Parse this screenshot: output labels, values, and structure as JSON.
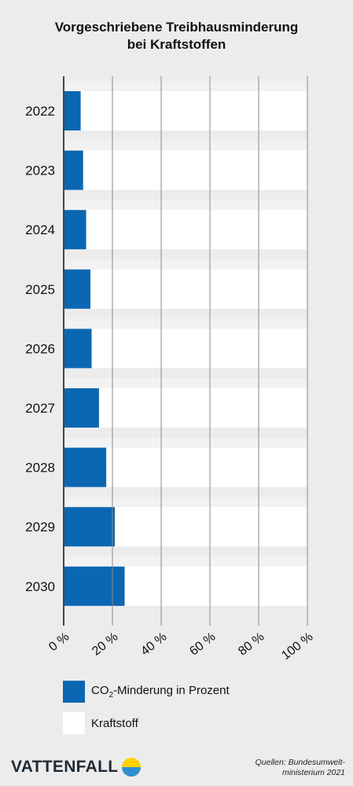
{
  "title_line1": "Vorgeschriebene Treibhausminderung",
  "title_line2": "bei Kraftstoffen",
  "colors": {
    "co2": "#0b67b2",
    "fuel": "#ffffff",
    "band": "#ececec",
    "grid": "#8a8a8a"
  },
  "chart_data": {
    "type": "bar",
    "orientation": "horizontal",
    "stacked": true,
    "categories": [
      "2022",
      "2023",
      "2024",
      "2025",
      "2026",
      "2027",
      "2028",
      "2029",
      "2030"
    ],
    "series": [
      {
        "name": "CO₂-Minderung in Prozent",
        "values": [
          7,
          8,
          9.25,
          11,
          11.5,
          14.5,
          17.5,
          21,
          25
        ]
      },
      {
        "name": "Kraftstoff",
        "values": [
          93,
          92,
          90.75,
          89,
          88.5,
          85.5,
          82.5,
          79,
          75
        ]
      }
    ],
    "x_ticks": [
      "0 %",
      "20 %",
      "40 %",
      "60 %",
      "80 %",
      "100 %"
    ],
    "xlim": [
      0,
      100
    ],
    "grid": true,
    "legend_position": "bottom"
  },
  "legend": {
    "co2_pre": "CO",
    "co2_sub": "2",
    "co2_post": "-Minderung in Prozent",
    "fuel": "Kraftstoff"
  },
  "logo": {
    "text": "VATTENFALL"
  },
  "source": {
    "line1": "Quellen: Bundesumwelt-",
    "line2": "ministerium 2021"
  }
}
